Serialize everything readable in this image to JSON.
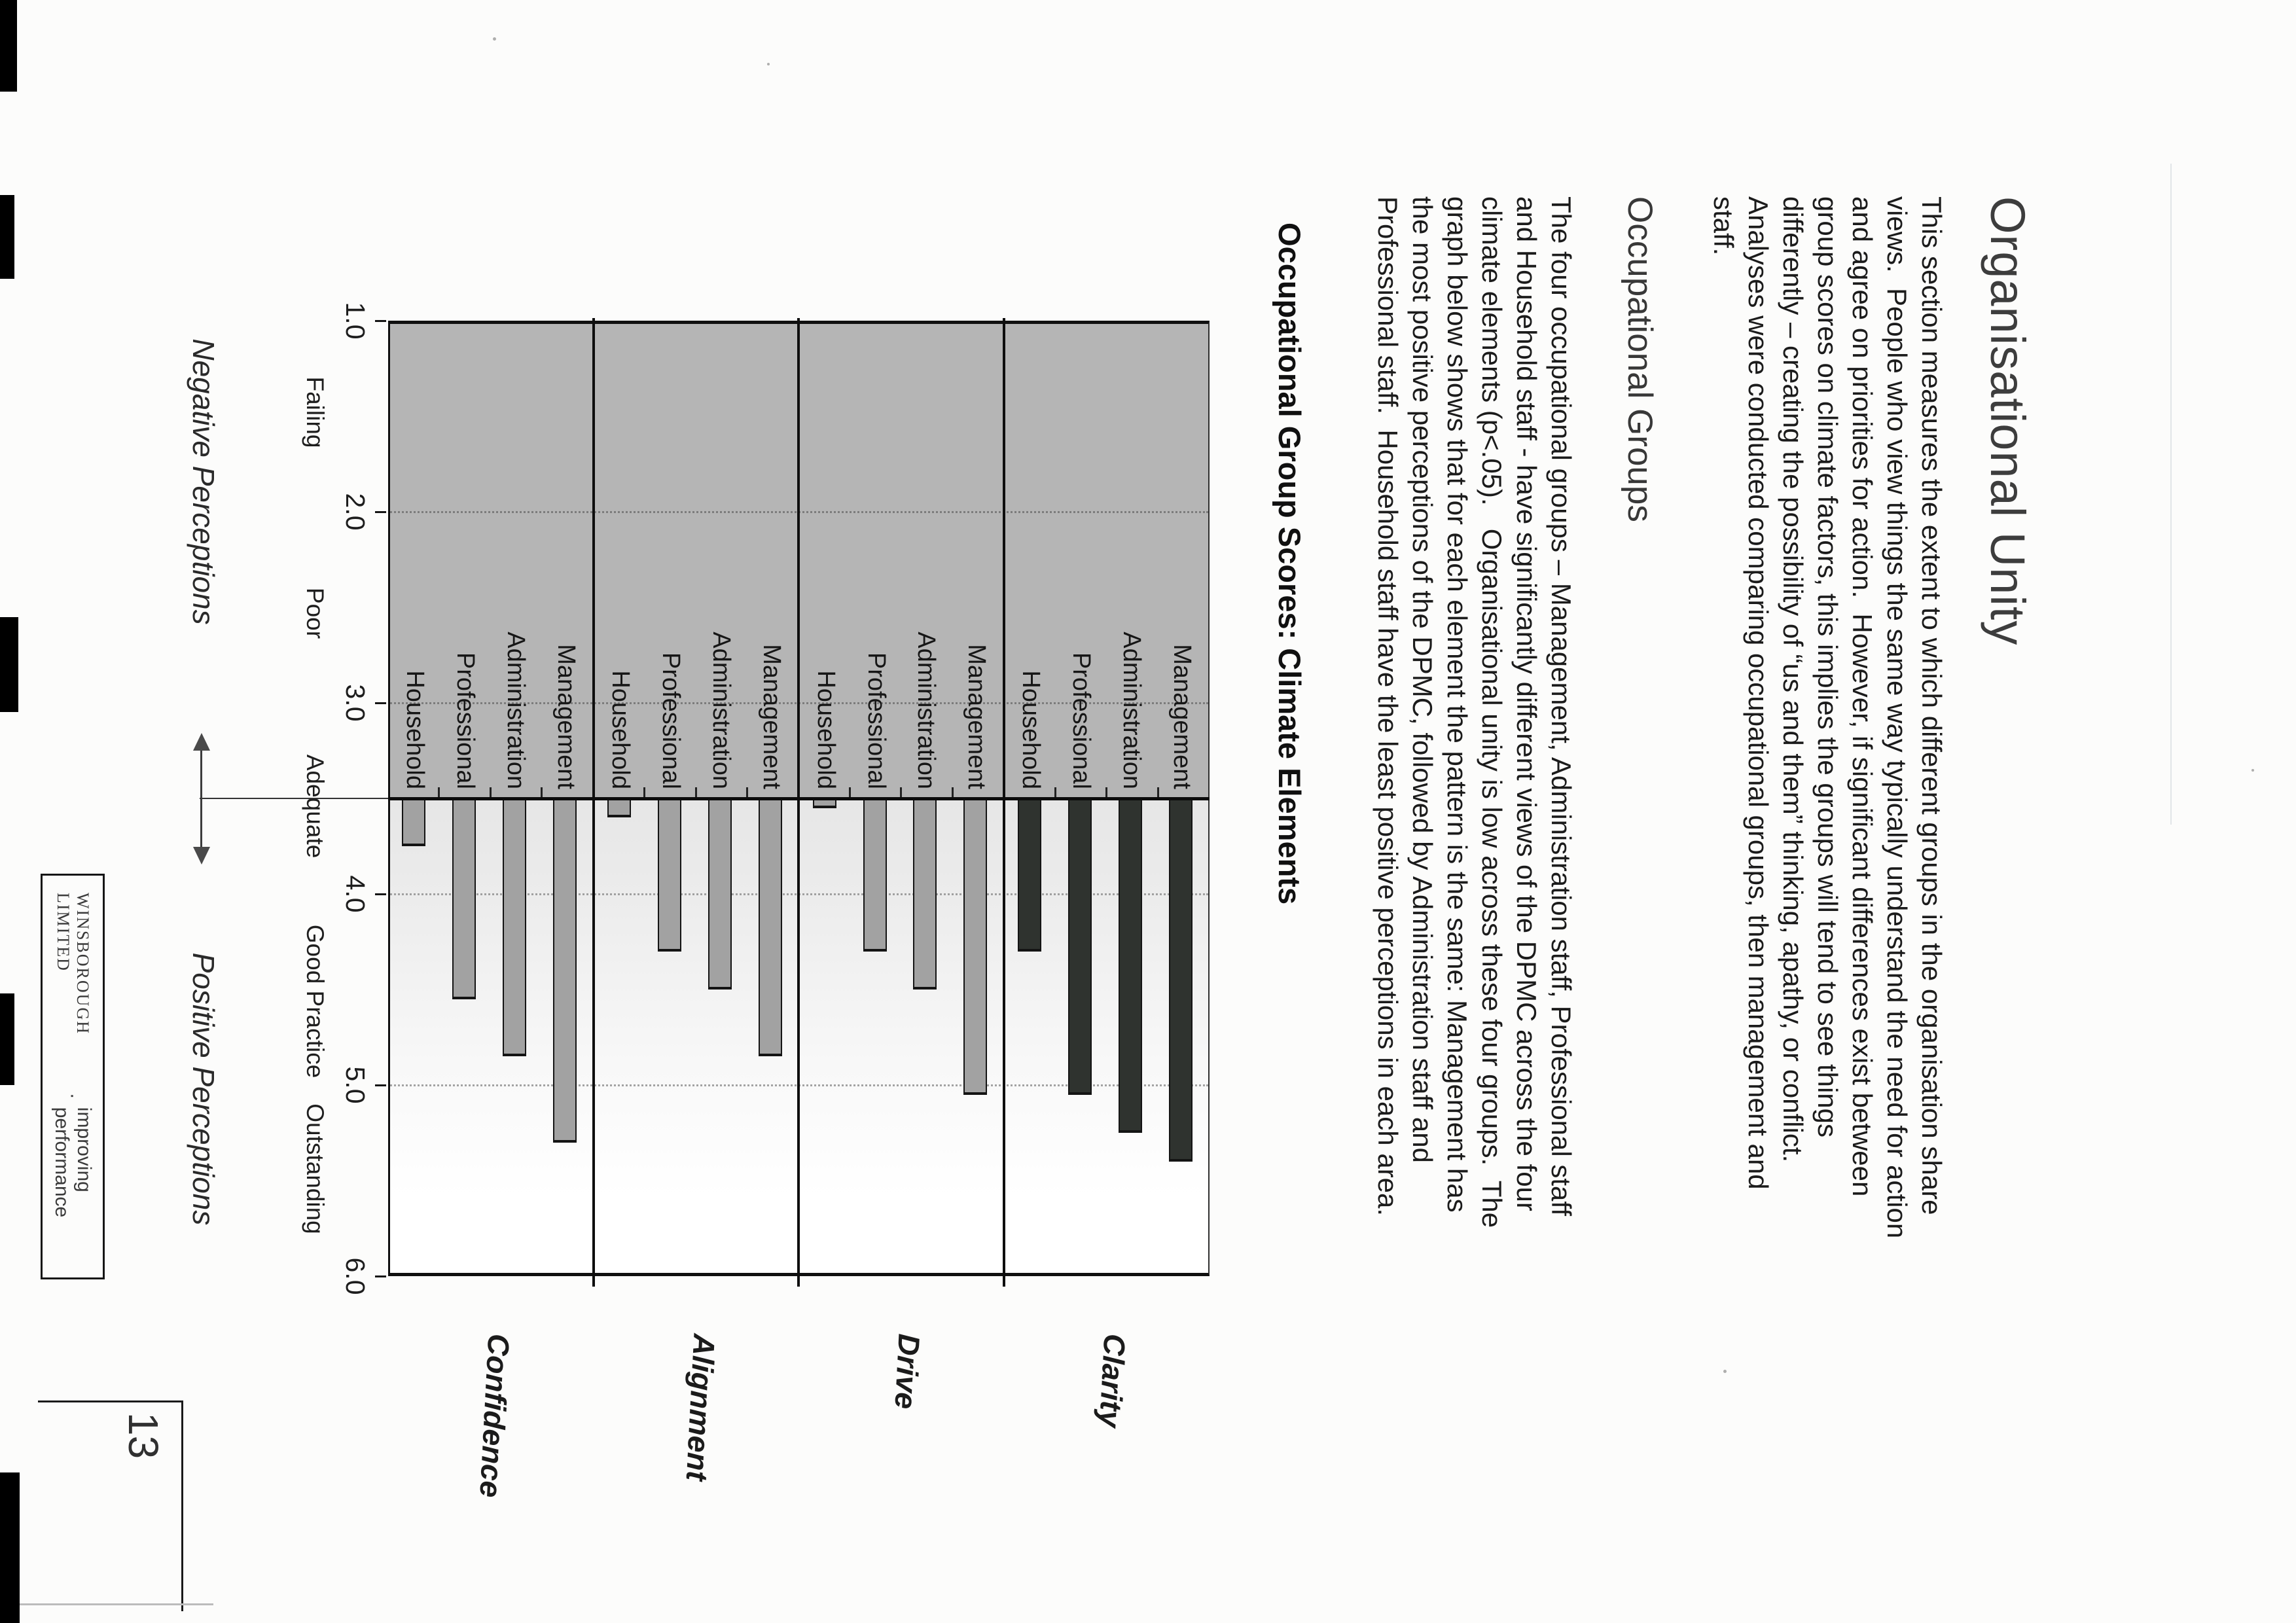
{
  "page": {
    "title": "Organisational Unity"
  },
  "sections": {
    "intro": {
      "lines": [
        "This section measures the extent to which different groups in the organisation share",
        "views.  People who view things the same way typically understand the need for action",
        "and agree on priorities for action.  However, if significant differences exist between",
        "group scores on climate factors, this implies the groups will tend to see things",
        "differently – creating the possibility of “us and them” thinking, apathy, or conflict.",
        "Analyses were conducted comparing occupational groups, then management and",
        "staff."
      ]
    },
    "groups_heading": "Occupational Groups",
    "groups_para": {
      "lines": [
        "The four occupational groups – Management, Administration staff, Professional staff",
        "and Household staff - have significantly different views of the DPMC across the four",
        "climate elements (p<.05).   Organisational unity is low across these four groups.  The",
        "graph below shows that for each element the pattern is the same: Management has",
        "the most positive perceptions of the DPMC, followed by Administration staff and",
        "Professional staff.  Household staff have the least positive perceptions in each area."
      ]
    }
  },
  "chart_data": {
    "type": "bar",
    "orientation": "horizontal",
    "title": "Occupational Group Scores: Climate Elements",
    "value_axis": {
      "min": 1.0,
      "max": 6.0,
      "baseline": 3.5,
      "tick_labels": [
        "1.0",
        "2.0",
        "3.0",
        "4.0",
        "5.0",
        "6.0"
      ],
      "tick_values": [
        1,
        2,
        3,
        4,
        5,
        6
      ],
      "gridlines": [
        2,
        3,
        4,
        5
      ],
      "grid_style": "dotted"
    },
    "band_labels": [
      {
        "label": "Failing",
        "at": 1.48
      },
      {
        "label": "Poor",
        "at": 2.53
      },
      {
        "label": "Adequate",
        "at": 3.54
      },
      {
        "label": "Good Practice",
        "at": 4.56
      },
      {
        "label": "Outstanding",
        "at": 5.44
      }
    ],
    "perceptions": {
      "negative": "Negative Perceptions",
      "positive": "Positive Perceptions"
    },
    "categories": [
      "Management",
      "Administration",
      "Professional",
      "Household"
    ],
    "groups": [
      {
        "name": "Clarity",
        "bar_color": "#2f332f",
        "bars": [
          {
            "label": "Management",
            "value": 5.4
          },
          {
            "label": "Administration",
            "value": 5.25
          },
          {
            "label": "Professional",
            "value": 5.05
          },
          {
            "label": "Household",
            "value": 4.3
          }
        ]
      },
      {
        "name": "Drive",
        "bar_color": "#a2a2a2",
        "bars": [
          {
            "label": "Management",
            "value": 5.05
          },
          {
            "label": "Administration",
            "value": 4.5
          },
          {
            "label": "Professional",
            "value": 4.3
          },
          {
            "label": "Household",
            "value": 3.55
          }
        ]
      },
      {
        "name": "Alignment",
        "bar_color": "#a2a2a2",
        "bars": [
          {
            "label": "Management",
            "value": 4.85
          },
          {
            "label": "Administration",
            "value": 4.5
          },
          {
            "label": "Professional",
            "value": 4.3
          },
          {
            "label": "Household",
            "value": 3.6
          }
        ]
      },
      {
        "name": "Confidence",
        "bar_color": "#a2a2a2",
        "bars": [
          {
            "label": "Management",
            "value": 5.3
          },
          {
            "label": "Administration",
            "value": 4.85
          },
          {
            "label": "Professional",
            "value": 4.55
          },
          {
            "label": "Household",
            "value": 3.75
          }
        ]
      }
    ],
    "colors": {
      "plot_band_fill": "#b5b5b5",
      "dark_bar": "#2f332f",
      "grey_bar": "#a2a2a2",
      "axis_line": "#0c0c0c"
    }
  },
  "footer": {
    "brand": "WINSBOROUGH LIMITED",
    "separator": "·",
    "tagline": "improving performance",
    "page_number": "13"
  }
}
